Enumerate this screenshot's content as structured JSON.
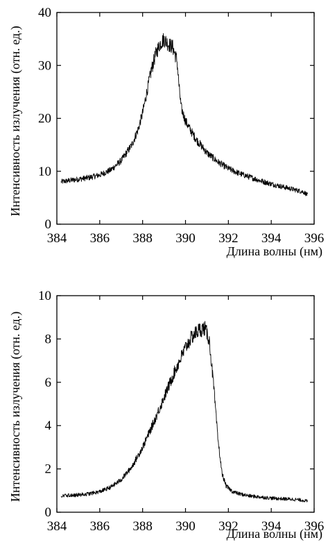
{
  "chart_data": [
    {
      "type": "line",
      "title": "",
      "xlabel": "Длина волны (нм)",
      "ylabel": "Интенсивность излучения (отн. ед.)",
      "xlim": [
        384,
        396
      ],
      "ylim": [
        0,
        40
      ],
      "x_ticks": [
        "384",
        "386",
        "388",
        "390",
        "392",
        "394",
        "396"
      ],
      "y_ticks": [
        "0",
        "10",
        "20",
        "30",
        "40"
      ],
      "grid": false,
      "line_color": "#000000",
      "series": [
        {
          "x": [
            384.2,
            384.5,
            385.0,
            385.5,
            386.0,
            386.5,
            387.0,
            387.5,
            387.8,
            388.0,
            388.2,
            388.4,
            388.6,
            388.8,
            389.0,
            389.2,
            389.4,
            389.6,
            389.7,
            389.8,
            390.0,
            390.2,
            390.5,
            391.0,
            391.5,
            392.0,
            392.5,
            393.0,
            393.5,
            394.0,
            394.5,
            395.0,
            395.5,
            395.7
          ],
          "y": [
            8.0,
            8.2,
            8.5,
            8.8,
            9.3,
            10.2,
            12.0,
            15.0,
            18.0,
            21.0,
            25.0,
            29.0,
            32.0,
            34.0,
            35.0,
            34.0,
            33.5,
            31.0,
            26.0,
            22.0,
            19.5,
            18.0,
            16.0,
            13.5,
            11.8,
            10.5,
            9.6,
            8.9,
            8.2,
            7.6,
            7.1,
            6.6,
            6.1,
            5.5
          ]
        }
      ]
    },
    {
      "type": "line",
      "title": "",
      "xlabel": "Длина волны (нм)",
      "ylabel": "Интенсивность излучения (отн. ед.)",
      "xlim": [
        384,
        396
      ],
      "ylim": [
        0,
        10
      ],
      "x_ticks": [
        "384",
        "386",
        "388",
        "390",
        "392",
        "394",
        "396"
      ],
      "y_ticks": [
        "0",
        "2",
        "4",
        "6",
        "8",
        "10"
      ],
      "grid": false,
      "line_color": "#000000",
      "series": [
        {
          "x": [
            384.2,
            385.0,
            385.5,
            386.0,
            386.5,
            387.0,
            387.5,
            388.0,
            388.5,
            389.0,
            389.5,
            390.0,
            390.3,
            390.6,
            390.9,
            391.1,
            391.3,
            391.5,
            391.7,
            391.9,
            392.2,
            392.5,
            393.0,
            393.5,
            394.0,
            394.5,
            395.0,
            395.5,
            395.7
          ],
          "y": [
            0.75,
            0.8,
            0.85,
            0.95,
            1.15,
            1.5,
            2.1,
            3.0,
            4.1,
            5.3,
            6.5,
            7.6,
            8.1,
            8.4,
            8.5,
            8.0,
            6.0,
            3.5,
            1.8,
            1.2,
            0.95,
            0.85,
            0.75,
            0.7,
            0.65,
            0.62,
            0.6,
            0.55,
            0.5
          ]
        }
      ]
    }
  ]
}
